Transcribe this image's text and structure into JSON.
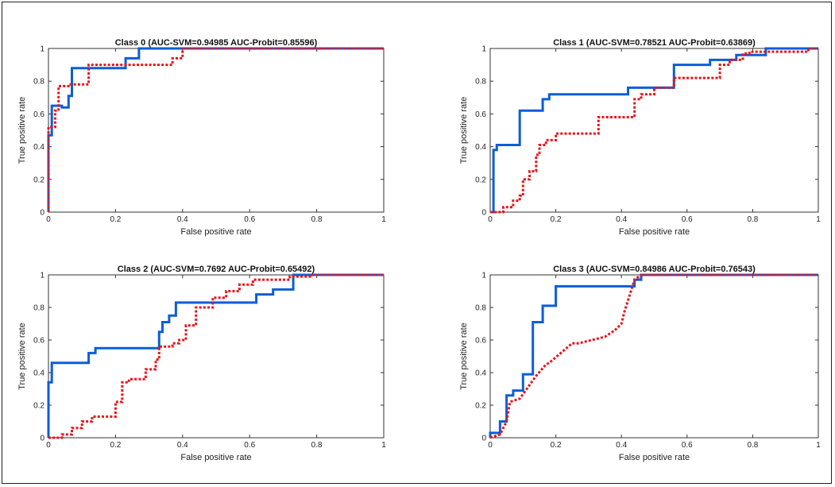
{
  "chart_data": [
    {
      "type": "line",
      "title": "Class 0 (AUC-SVM=0.94985 AUC-Probit=0.85596)",
      "xlabel": "False positive rate",
      "ylabel": "True positive rate",
      "xlim": [
        0,
        1
      ],
      "ylim": [
        0,
        1
      ],
      "xticks": [
        "0",
        "0.2",
        "0.4",
        "0.6",
        "0.8",
        "1"
      ],
      "yticks": [
        "0",
        "0.2",
        "0.4",
        "0.6",
        "0.8",
        "1"
      ],
      "series": [
        {
          "color": "#0b5ed7",
          "style": "solid",
          "x": [
            0,
            0,
            0.01,
            0.01,
            0.04,
            0.04,
            0.06,
            0.06,
            0.07,
            0.07,
            0.23,
            0.23,
            0.27,
            0.27,
            1
          ],
          "y": [
            0,
            0.47,
            0.47,
            0.65,
            0.65,
            0.64,
            0.64,
            0.71,
            0.71,
            0.88,
            0.88,
            0.94,
            0.94,
            1,
            1
          ]
        },
        {
          "color": "#e8141a",
          "style": "dotted",
          "x": [
            0,
            0,
            0.02,
            0.02,
            0.03,
            0.03,
            0.06,
            0.06,
            0.12,
            0.12,
            0.21,
            0.21,
            0.37,
            0.37,
            0.4,
            0.4,
            1
          ],
          "y": [
            0,
            0.52,
            0.52,
            0.62,
            0.62,
            0.77,
            0.77,
            0.78,
            0.78,
            0.9,
            0.9,
            0.9,
            0.9,
            0.94,
            0.94,
            1,
            1
          ]
        }
      ]
    },
    {
      "type": "line",
      "title": "Class 1 (AUC-SVM=0.78521 AUC-Probit=0.63869)",
      "xlabel": "False positive rate",
      "ylabel": "True positive rate",
      "xlim": [
        0,
        1
      ],
      "ylim": [
        0,
        1
      ],
      "xticks": [
        "0",
        "0.2",
        "0.4",
        "0.6",
        "0.8",
        "1"
      ],
      "yticks": [
        "0",
        "0.2",
        "0.4",
        "0.6",
        "0.8",
        "1"
      ],
      "series": [
        {
          "color": "#0b5ed7",
          "style": "solid",
          "x": [
            0,
            0.01,
            0.01,
            0.02,
            0.02,
            0.09,
            0.09,
            0.16,
            0.16,
            0.18,
            0.18,
            0.2,
            0.2,
            0.42,
            0.42,
            0.56,
            0.56,
            0.67,
            0.67,
            0.75,
            0.75,
            0.84,
            0.84,
            1
          ],
          "y": [
            0,
            0,
            0.38,
            0.38,
            0.41,
            0.41,
            0.62,
            0.62,
            0.69,
            0.69,
            0.72,
            0.72,
            0.72,
            0.72,
            0.76,
            0.76,
            0.9,
            0.9,
            0.93,
            0.93,
            0.96,
            0.96,
            1,
            1
          ]
        },
        {
          "color": "#e8141a",
          "style": "dotted",
          "x": [
            0,
            0.04,
            0.04,
            0.07,
            0.07,
            0.09,
            0.09,
            0.1,
            0.1,
            0.12,
            0.12,
            0.14,
            0.14,
            0.15,
            0.15,
            0.17,
            0.17,
            0.2,
            0.2,
            0.33,
            0.33,
            0.44,
            0.44,
            0.46,
            0.46,
            0.5,
            0.5,
            0.56,
            0.56,
            0.61,
            0.61,
            0.7,
            0.7,
            0.73,
            0.73,
            0.77,
            0.77,
            0.79,
            0.79,
            0.97,
            0.97,
            1
          ],
          "y": [
            0,
            0,
            0.03,
            0.03,
            0.07,
            0.07,
            0.1,
            0.1,
            0.2,
            0.2,
            0.25,
            0.25,
            0.35,
            0.35,
            0.41,
            0.41,
            0.44,
            0.44,
            0.48,
            0.48,
            0.58,
            0.58,
            0.69,
            0.69,
            0.72,
            0.72,
            0.76,
            0.76,
            0.82,
            0.82,
            0.82,
            0.82,
            0.9,
            0.9,
            0.93,
            0.93,
            0.97,
            0.97,
            0.98,
            0.98,
            1,
            1
          ]
        }
      ]
    },
    {
      "type": "line",
      "title": "Class 2 (AUC-SVM=0.7692 AUC-Probit=0.65492)",
      "xlabel": "False positive rate",
      "ylabel": "True positive rate",
      "xlim": [
        0,
        1
      ],
      "ylim": [
        0,
        1
      ],
      "xticks": [
        "0",
        "0.2",
        "0.4",
        "0.6",
        "0.8",
        "1"
      ],
      "yticks": [
        "0",
        "0.2",
        "0.4",
        "0.6",
        "0.8",
        "1"
      ],
      "series": [
        {
          "color": "#0b5ed7",
          "style": "solid",
          "x": [
            0,
            0,
            0.01,
            0.01,
            0.03,
            0.03,
            0.12,
            0.12,
            0.14,
            0.14,
            0.33,
            0.33,
            0.34,
            0.34,
            0.36,
            0.36,
            0.38,
            0.38,
            0.56,
            0.56,
            0.62,
            0.62,
            0.67,
            0.67,
            0.73,
            0.73,
            1
          ],
          "y": [
            0,
            0.34,
            0.34,
            0.46,
            0.46,
            0.46,
            0.46,
            0.52,
            0.52,
            0.55,
            0.55,
            0.65,
            0.65,
            0.71,
            0.71,
            0.75,
            0.75,
            0.83,
            0.83,
            0.83,
            0.83,
            0.88,
            0.88,
            0.91,
            0.91,
            1,
            1
          ]
        },
        {
          "color": "#e8141a",
          "style": "dotted",
          "x": [
            0,
            0.04,
            0.04,
            0.07,
            0.07,
            0.1,
            0.1,
            0.13,
            0.13,
            0.2,
            0.2,
            0.22,
            0.22,
            0.24,
            0.24,
            0.29,
            0.29,
            0.32,
            0.32,
            0.33,
            0.33,
            0.37,
            0.37,
            0.39,
            0.39,
            0.41,
            0.41,
            0.44,
            0.44,
            0.49,
            0.49,
            0.53,
            0.53,
            0.57,
            0.57,
            0.61,
            0.61,
            0.67,
            0.67,
            0.72,
            0.72,
            0.78,
            0.78,
            1
          ],
          "y": [
            0,
            0,
            0.02,
            0.02,
            0.06,
            0.06,
            0.1,
            0.1,
            0.13,
            0.13,
            0.22,
            0.22,
            0.34,
            0.34,
            0.36,
            0.36,
            0.42,
            0.42,
            0.48,
            0.48,
            0.56,
            0.56,
            0.58,
            0.58,
            0.6,
            0.6,
            0.69,
            0.69,
            0.8,
            0.8,
            0.86,
            0.86,
            0.9,
            0.9,
            0.94,
            0.94,
            0.97,
            0.97,
            0.97,
            0.97,
            0.99,
            0.99,
            1,
            1
          ]
        }
      ]
    },
    {
      "type": "line",
      "title": "Class 3 (AUC-SVM=0.84986 AUC-Probit=0.76543)",
      "xlabel": "False positive rate",
      "ylabel": "True positive rate",
      "xlim": [
        0,
        1
      ],
      "ylim": [
        0,
        1
      ],
      "xticks": [
        "0",
        "0.2",
        "0.4",
        "0.6",
        "0.8",
        "1"
      ],
      "yticks": [
        "0",
        "0.2",
        "0.4",
        "0.6",
        "0.8",
        "1"
      ],
      "series": [
        {
          "color": "#0b5ed7",
          "style": "solid",
          "x": [
            0,
            0,
            0.03,
            0.03,
            0.05,
            0.05,
            0.07,
            0.07,
            0.1,
            0.1,
            0.13,
            0.13,
            0.16,
            0.16,
            0.2,
            0.2,
            0.22,
            0.22,
            0.44,
            0.44,
            0.46,
            0.46,
            1
          ],
          "y": [
            0,
            0.03,
            0.03,
            0.1,
            0.1,
            0.26,
            0.26,
            0.29,
            0.29,
            0.39,
            0.39,
            0.71,
            0.71,
            0.81,
            0.81,
            0.93,
            0.93,
            0.93,
            0.93,
            0.97,
            0.97,
            1,
            1
          ]
        },
        {
          "color": "#e8141a",
          "style": "dotted",
          "x": [
            0,
            0.03,
            0.03,
            0.05,
            0.05,
            0.06,
            0.06,
            0.09,
            0.09,
            0.14,
            0.14,
            0.17,
            0.17,
            0.18,
            0.18,
            0.25,
            0.25,
            0.27,
            0.27,
            0.35,
            0.35,
            0.38,
            0.38,
            0.4,
            0.4,
            0.41,
            0.41,
            0.44,
            0.44,
            0.46,
            0.46,
            1
          ],
          "y": [
            0,
            0.02,
            0.02,
            0.1,
            0.1,
            0.22,
            0.22,
            0.24,
            0.24,
            0.38,
            0.38,
            0.45,
            0.45,
            0.46,
            0.46,
            0.58,
            0.58,
            0.58,
            0.58,
            0.62,
            0.62,
            0.66,
            0.66,
            0.7,
            0.7,
            0.78,
            0.78,
            0.97,
            0.97,
            1,
            1,
            1
          ]
        }
      ]
    }
  ]
}
